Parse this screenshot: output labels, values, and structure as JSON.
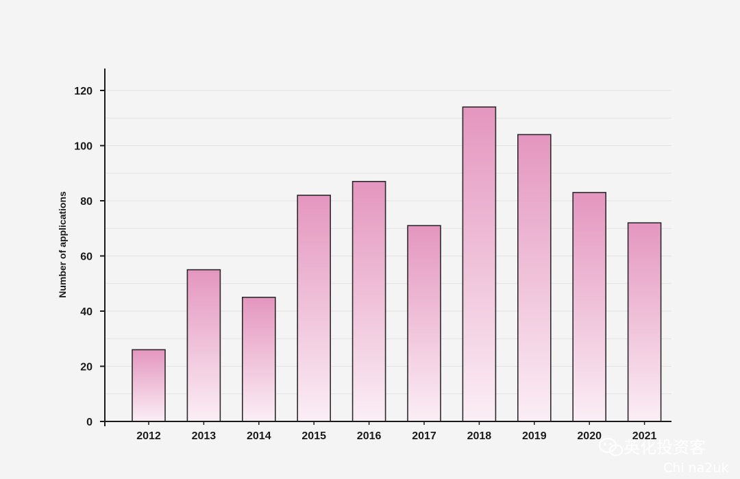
{
  "chart_data": {
    "type": "bar",
    "categories": [
      "2012",
      "2013",
      "2014",
      "2015",
      "2016",
      "2017",
      "2018",
      "2019",
      "2020",
      "2021"
    ],
    "values": [
      26,
      55,
      45,
      82,
      87,
      71,
      114,
      104,
      83,
      72
    ],
    "ylabel": "Number of applications",
    "xlabel": "",
    "ylim": [
      0,
      128
    ],
    "yticks": [
      0,
      20,
      40,
      60,
      80,
      100,
      120
    ],
    "grid": true,
    "colors": {
      "bar_top": "#e496bf",
      "bar_bottom": "#fbeef5",
      "bar_stroke": "#2a2a2a",
      "grid": "#e2e2e2",
      "axis": "#1a1a1a"
    }
  },
  "watermark": {
    "text": "英化投资客",
    "subtext": "Chi na2uk"
  }
}
